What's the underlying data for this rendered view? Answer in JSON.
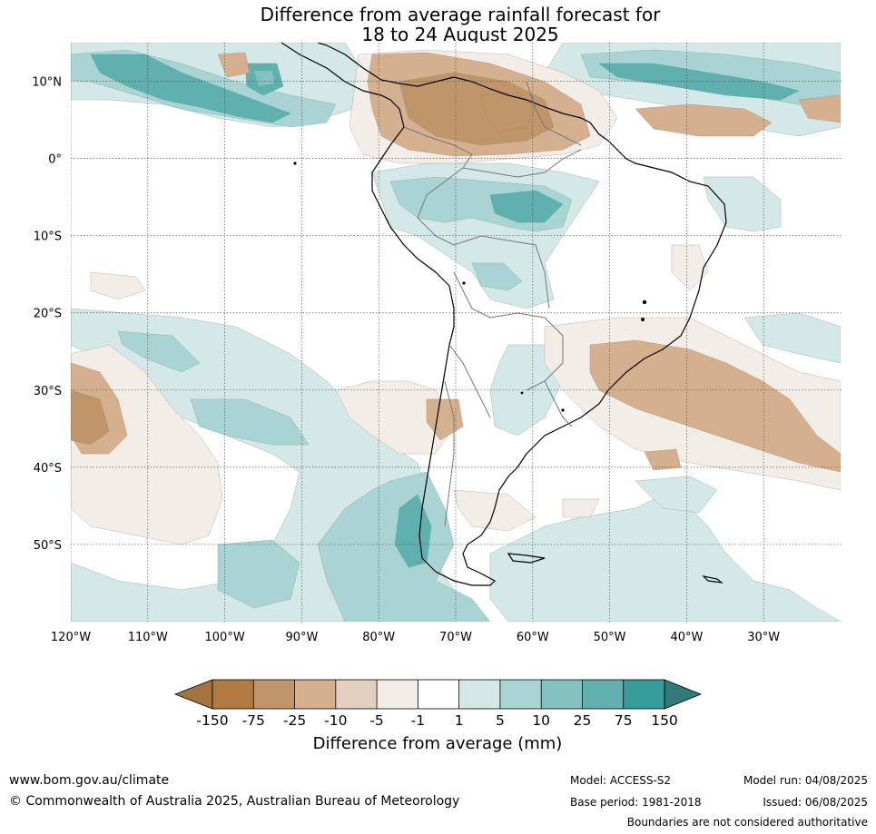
{
  "title": {
    "line1": "Difference from average rainfall forecast for",
    "line2": "18 to 24 August 2025"
  },
  "map": {
    "lat_labels": [
      "10°N",
      "0°",
      "10°S",
      "20°S",
      "30°S",
      "40°S",
      "50°S"
    ],
    "lon_labels": [
      "120°W",
      "110°W",
      "100°W",
      "90°W",
      "80°W",
      "70°W",
      "60°W",
      "50°W",
      "40°W",
      "30°W"
    ],
    "extent": {
      "lon_min": -120,
      "lon_max": -20,
      "lat_min": -60,
      "lat_max": 15
    }
  },
  "colorbar": {
    "title": "Difference from average (mm)",
    "ticks": [
      "-150",
      "-75",
      "-25",
      "-10",
      "-5",
      "-1",
      "1",
      "5",
      "10",
      "25",
      "75",
      "150"
    ],
    "colors": {
      "below_min": "#a5733e",
      "bins": [
        "#b07a42",
        "#c1956a",
        "#d4b08e",
        "#e4d0bf",
        "#f2ede7",
        "#ffffff",
        "#d3e8e7",
        "#aad4d4",
        "#84c2c2",
        "#5fb0ae",
        "#359c9a"
      ],
      "above_max": "#2e7b7a"
    }
  },
  "footer": {
    "website": "www.bom.gov.au/climate",
    "copyright": "© Commonwealth of Australia 2025, Australian Bureau of Meteorology",
    "model": "Model: ACCESS-S2",
    "model_run": "Model run: 04/08/2025",
    "base_period": "Base period: 1981-2018",
    "issued": "Issued: 06/08/2025",
    "disclaimer": "Boundaries are not considered authoritative"
  }
}
